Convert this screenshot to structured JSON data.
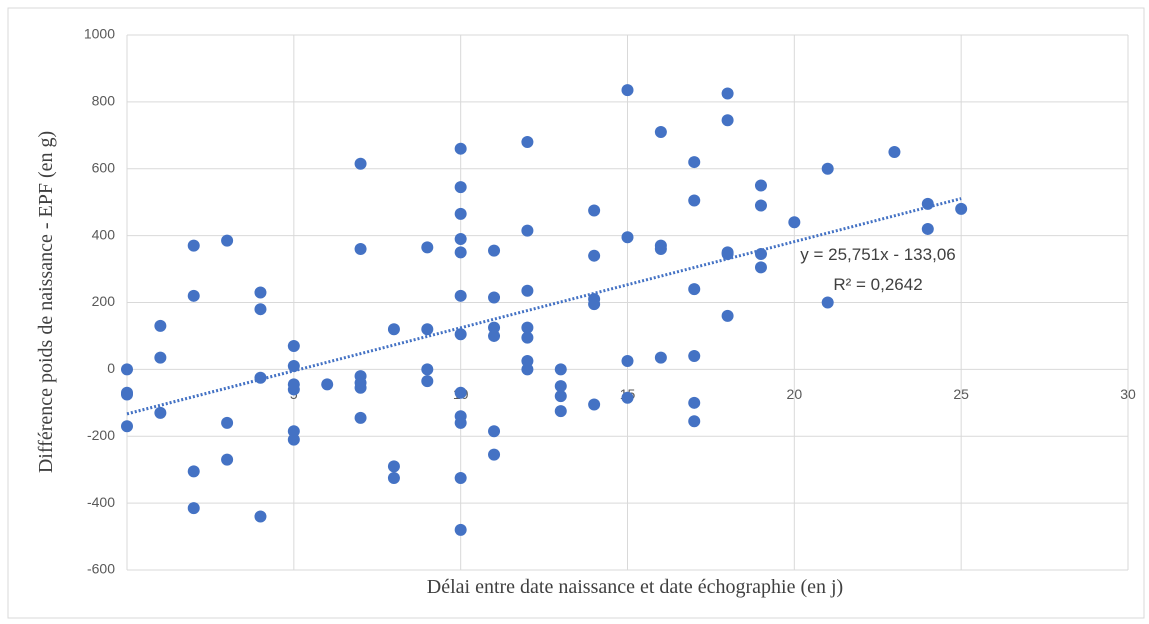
{
  "chart_data": {
    "type": "scatter",
    "x_label": "Délai entre date naissance et date échographie (en j)",
    "y_label": "Différence poids de naissance - EPF (en g)",
    "color": "#4472c4",
    "grid": true,
    "xlim": [
      0,
      30
    ],
    "xticks": [
      0,
      5,
      10,
      15,
      20,
      25,
      30
    ],
    "ylim": [
      -600,
      1000
    ],
    "yticks": [
      -600,
      -400,
      -200,
      0,
      200,
      400,
      600,
      800,
      1000
    ],
    "x": [
      0,
      0,
      0,
      0,
      1,
      1,
      1,
      2,
      2,
      2,
      2,
      3,
      3,
      3,
      4,
      4,
      4,
      4,
      5,
      5,
      5,
      5,
      5,
      5,
      6,
      7,
      7,
      7,
      7,
      7,
      7,
      8,
      8,
      8,
      9,
      9,
      9,
      9,
      10,
      10,
      10,
      10,
      10,
      10,
      10,
      10,
      10,
      10,
      10,
      10,
      11,
      11,
      11,
      11,
      11,
      11,
      12,
      12,
      12,
      12,
      12,
      12,
      12,
      13,
      13,
      13,
      13,
      14,
      14,
      14,
      14,
      14,
      15,
      15,
      15,
      15,
      16,
      16,
      16,
      16,
      17,
      17,
      17,
      17,
      17,
      17,
      18,
      18,
      18,
      18,
      18,
      19,
      19,
      19,
      19,
      20,
      21,
      21,
      23,
      24,
      24,
      25
    ],
    "values": [
      0,
      -75,
      -170,
      -70,
      130,
      35,
      -130,
      370,
      220,
      -305,
      -415,
      385,
      -160,
      -270,
      230,
      180,
      -25,
      -440,
      70,
      10,
      -45,
      -60,
      -185,
      -210,
      -45,
      615,
      360,
      -20,
      -40,
      -55,
      -145,
      120,
      -290,
      -325,
      365,
      120,
      0,
      -35,
      660,
      545,
      465,
      390,
      350,
      220,
      105,
      -70,
      -140,
      -160,
      -325,
      -480,
      355,
      215,
      125,
      100,
      -185,
      -255,
      680,
      415,
      235,
      125,
      95,
      25,
      0,
      0,
      -50,
      -80,
      -125,
      475,
      340,
      210,
      195,
      -105,
      835,
      395,
      25,
      -85,
      710,
      370,
      360,
      35,
      620,
      505,
      240,
      40,
      -100,
      -155,
      825,
      745,
      350,
      345,
      160,
      550,
      490,
      345,
      305,
      440,
      600,
      200,
      650,
      495,
      420,
      480
    ],
    "trendline": {
      "slope": 25.751,
      "intercept": -133.06,
      "label": "y = 25,751x - 133,06",
      "r2_label": "R² = 0,2642"
    }
  }
}
